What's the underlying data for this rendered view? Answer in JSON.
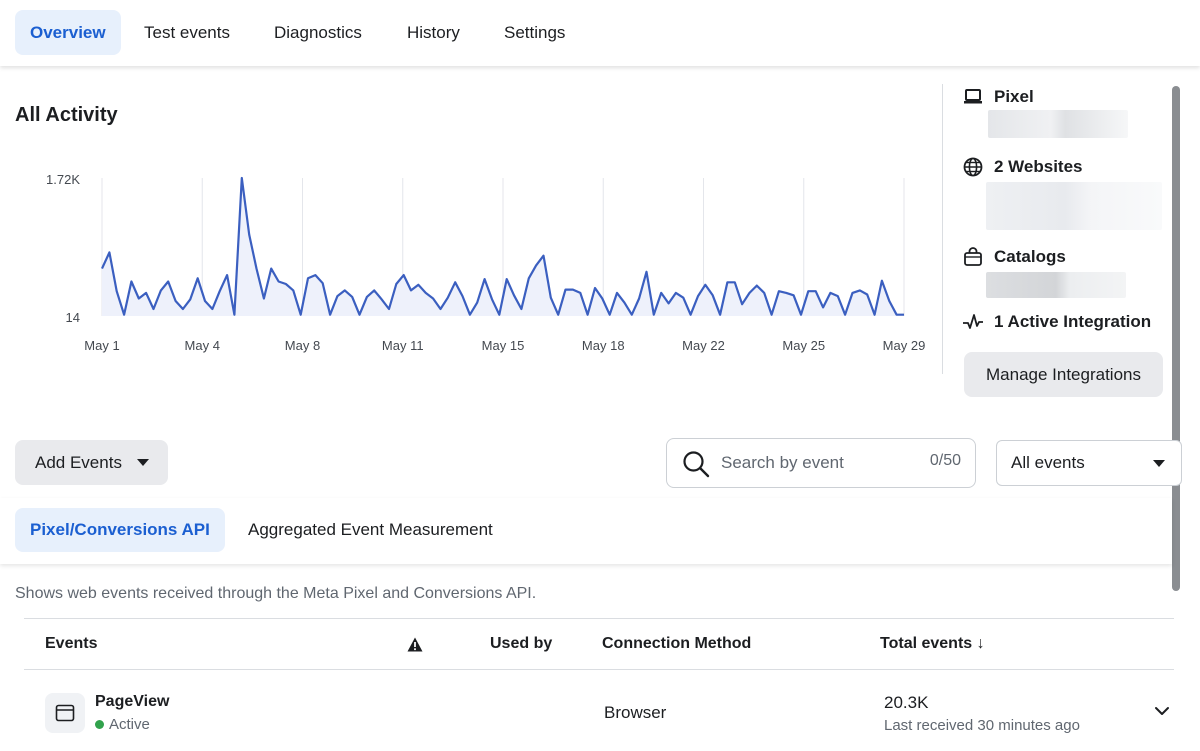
{
  "tabs": [
    {
      "label": "Overview",
      "active": true
    },
    {
      "label": "Test events"
    },
    {
      "label": "Diagnostics"
    },
    {
      "label": "History"
    },
    {
      "label": "Settings"
    }
  ],
  "activity": {
    "title": "All Activity"
  },
  "chart_data": {
    "type": "area",
    "x_tick_labels": [
      "May 1",
      "May 4",
      "May 8",
      "May 11",
      "May 15",
      "May 18",
      "May 22",
      "May 25",
      "May 29"
    ],
    "y_tick_labels": [
      "1.72K",
      "14"
    ],
    "ylim": [
      14,
      1720
    ],
    "grid": "vertical",
    "series": [
      {
        "color": "#3b5fc0",
        "values": [
          600,
          800,
          320,
          30,
          440,
          230,
          300,
          100,
          330,
          440,
          200,
          100,
          220,
          480,
          200,
          100,
          320,
          520,
          30,
          1720,
          1020,
          600,
          230,
          600,
          440,
          410,
          330,
          30,
          480,
          520,
          420,
          30,
          260,
          330,
          250,
          30,
          250,
          330,
          220,
          100,
          410,
          520,
          330,
          400,
          300,
          230,
          100,
          240,
          430,
          260,
          30,
          180,
          470,
          220,
          30,
          470,
          270,
          100,
          480,
          640,
          760,
          240,
          30,
          340,
          340,
          300,
          30,
          360,
          230,
          30,
          300,
          180,
          30,
          230,
          560,
          30,
          300,
          170,
          300,
          240,
          30,
          260,
          400,
          270,
          30,
          430,
          430,
          160,
          300,
          390,
          300,
          30,
          320,
          300,
          270,
          30,
          320,
          320,
          120,
          300,
          260,
          30,
          300,
          330,
          280,
          30,
          450,
          200,
          30,
          30
        ]
      }
    ]
  },
  "side": {
    "pixel_label": "Pixel",
    "websites_label": "2 Websites",
    "catalogs_label": "Catalogs",
    "integration_label": "1 Active Integration",
    "manage_label": "Manage Integrations"
  },
  "controls": {
    "add_events_label": "Add Events",
    "search_placeholder": "Search by event",
    "search_counter": "0/50",
    "filter_value": "All events"
  },
  "subtabs": [
    {
      "label": "Pixel/Conversions API",
      "active": true
    },
    {
      "label": "Aggregated Event Measurement"
    }
  ],
  "description": "Shows web events received through the Meta Pixel and Conversions API.",
  "table": {
    "headers": {
      "events": "Events",
      "used_by": "Used by",
      "connection": "Connection Method",
      "total": "Total events ↓"
    },
    "rows": [
      {
        "name": "PageView",
        "status": "Active",
        "connection": "Browser",
        "total": "20.3K",
        "last_received": "Last received 30 minutes ago"
      }
    ]
  }
}
